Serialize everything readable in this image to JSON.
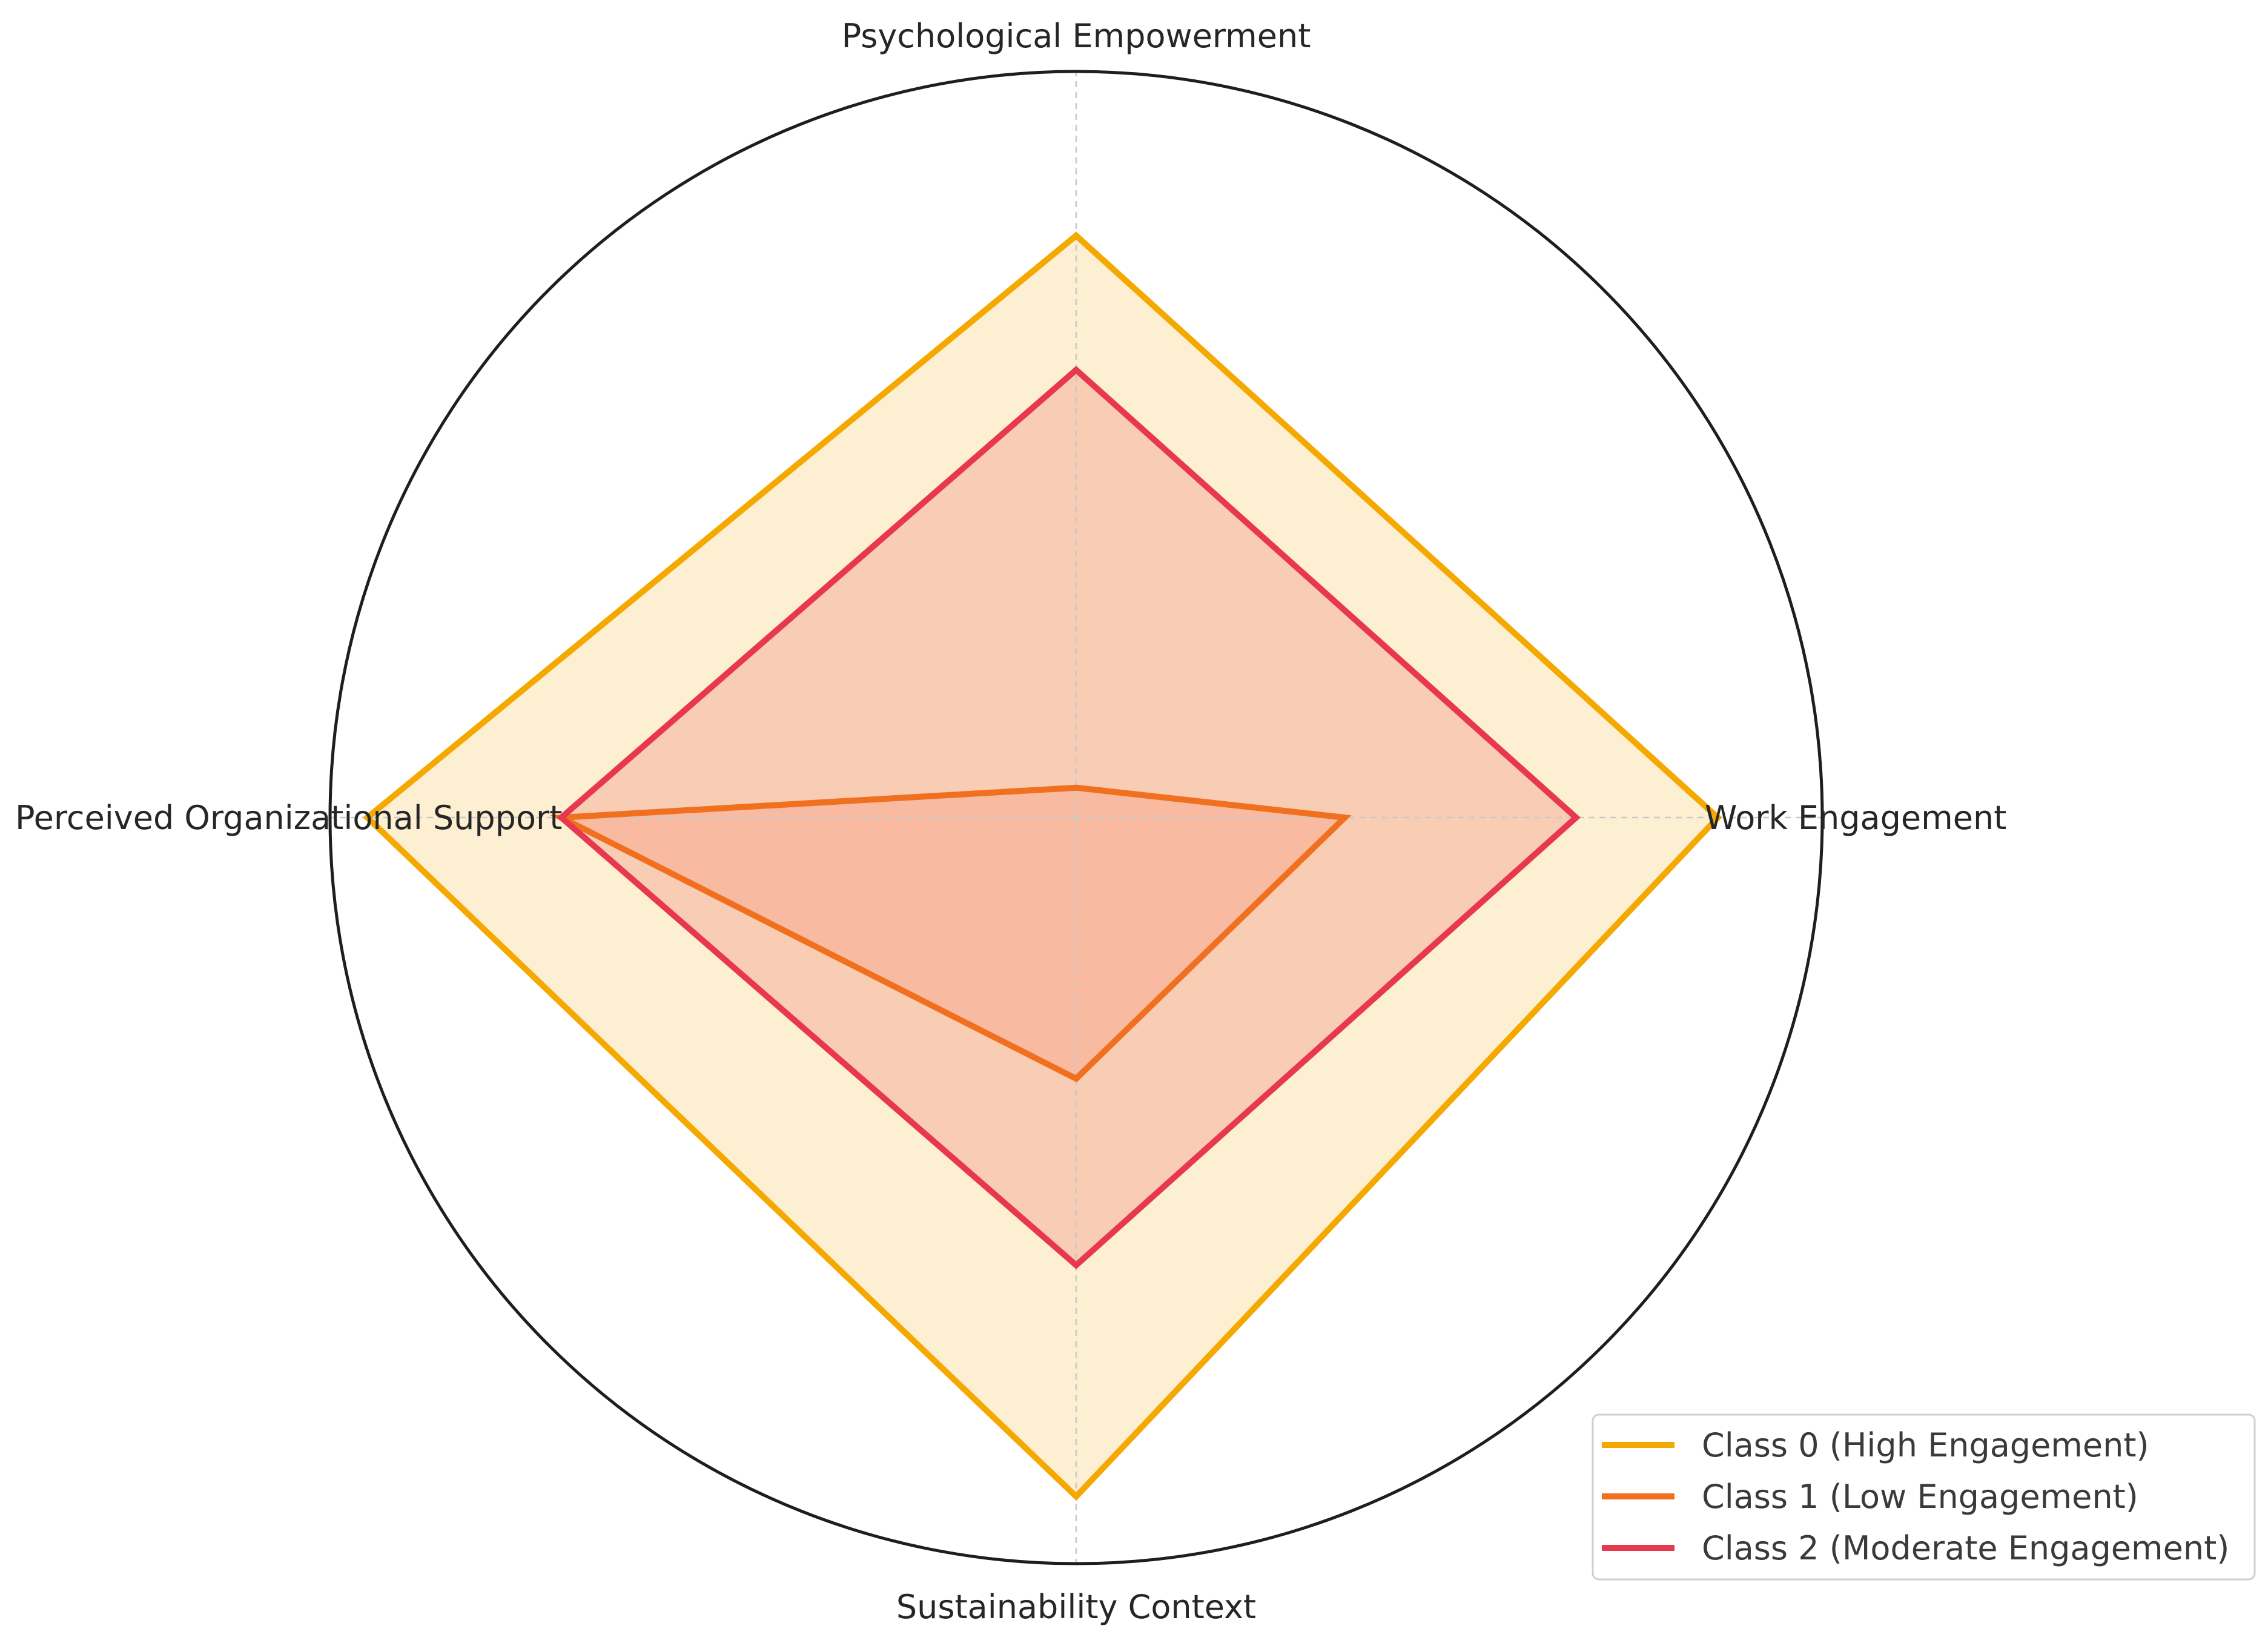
{
  "chart_data": {
    "type": "radar",
    "axes": [
      "Psychological Empowerment",
      "Work Engagement",
      "Sustainability Context",
      "Perceived Organizational Support"
    ],
    "rlim": [
      0,
      1
    ],
    "grid": true,
    "legend": "bottom-right",
    "series": [
      {
        "name": "Class 0 (High Engagement)",
        "values": [
          0.78,
          0.86,
          0.91,
          0.95
        ],
        "color": "#F5A800",
        "fill": "#FCE6B8"
      },
      {
        "name": "Class 1 (Low Engagement)",
        "values": [
          0.04,
          0.36,
          0.35,
          0.69
        ],
        "color": "#F07020",
        "fill": "#F7A07A"
      },
      {
        "name": "Class 2 (Moderate Engagement)",
        "values": [
          0.6,
          0.67,
          0.6,
          0.69
        ],
        "color": "#E8384F",
        "fill": "#F8B9A5"
      }
    ]
  }
}
